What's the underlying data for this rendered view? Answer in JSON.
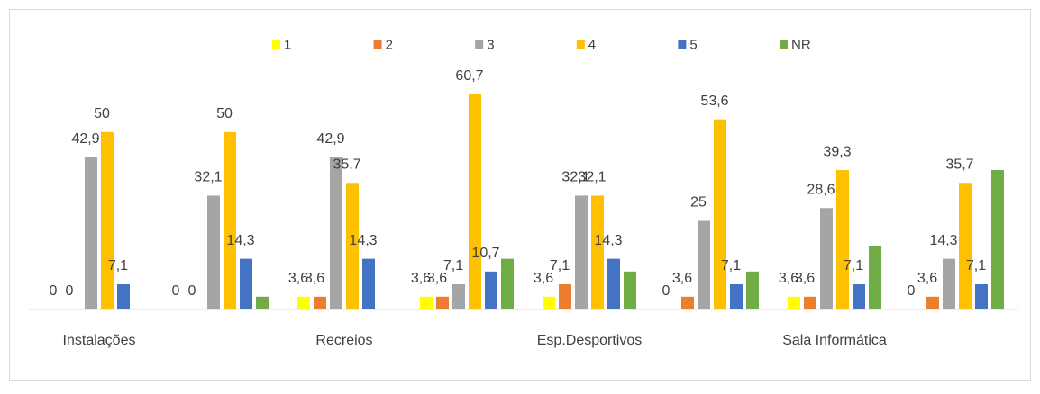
{
  "chart_data": {
    "type": "bar",
    "categories": [
      "Instalações",
      null,
      "Recreios",
      null,
      "Esp.Desportivos",
      null,
      "Sala Informática",
      null
    ],
    "ylim": [
      0,
      70
    ],
    "legend": "top",
    "series": [
      {
        "name": "1",
        "color": "#ffff00",
        "values": [
          0,
          0,
          3.6,
          3.6,
          3.6,
          0,
          3.6,
          0
        ],
        "value_labels": [
          "0",
          "0",
          "3,6",
          "3,6",
          "3,6",
          "0",
          "3,6",
          "0"
        ]
      },
      {
        "name": "2",
        "color": "#ed7d31",
        "values": [
          0,
          0,
          3.6,
          3.6,
          7.1,
          3.6,
          3.6,
          3.6
        ],
        "value_labels": [
          "0",
          "0",
          "3,6",
          "3,6",
          "7,1",
          "3,6",
          "3,6",
          "3,6"
        ]
      },
      {
        "name": "3",
        "color": "#a5a5a5",
        "values": [
          42.9,
          32.1,
          42.9,
          7.1,
          32.1,
          25,
          28.6,
          14.3
        ],
        "value_labels": [
          "42,9",
          "32,1",
          "42,9",
          "7,1",
          "32,1",
          "25",
          "28,6",
          "14,3"
        ]
      },
      {
        "name": "4",
        "color": "#ffc000",
        "values": [
          50,
          50,
          35.7,
          60.7,
          32.1,
          53.6,
          39.3,
          35.7
        ],
        "value_labels": [
          "50",
          "50",
          "35,7",
          "60,7",
          "32,1",
          "53,6",
          "39,3",
          "35,7"
        ]
      },
      {
        "name": "5",
        "color": "#4472c4",
        "values": [
          7.1,
          14.3,
          14.3,
          10.7,
          14.3,
          7.1,
          7.1,
          7.1
        ],
        "value_labels": [
          "7,1",
          "14,3",
          "14,3",
          "10,7",
          "14,3",
          "7,1",
          "7,1",
          "7,1"
        ]
      },
      {
        "name": "NR",
        "color": "#70ad47",
        "values": [
          null,
          3.6,
          null,
          14.3,
          10.7,
          10.7,
          17.9,
          39.3
        ],
        "value_labels": [
          null,
          null,
          null,
          null,
          null,
          null,
          null,
          null
        ]
      }
    ]
  }
}
